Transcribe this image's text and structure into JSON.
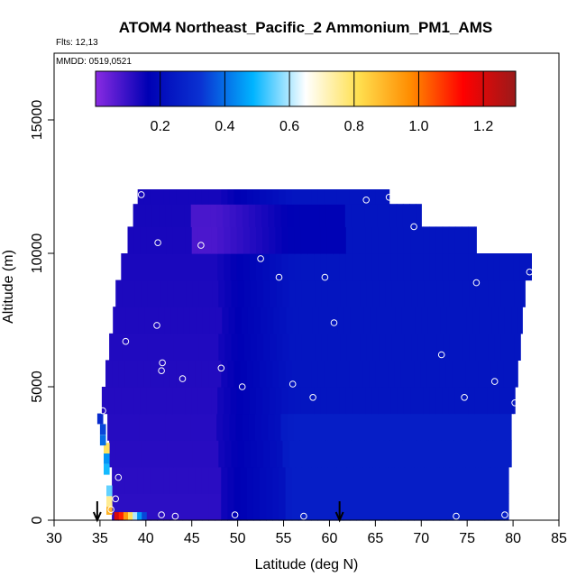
{
  "chart_data": {
    "type": "heatmap",
    "title": "ATOM4 Northeast_Pacific_2 Ammonium_PM1_AMS",
    "flights_label": "Flts: 12,13",
    "dates_label": "MMDD: 0519,0521",
    "xlabel": "Latitude (deg N)",
    "ylabel": "Altitude (m)",
    "xlim": [
      30,
      85
    ],
    "ylim": [
      0,
      17500
    ],
    "x_ticks": [
      30,
      35,
      40,
      45,
      50,
      55,
      60,
      65,
      70,
      75,
      80,
      85
    ],
    "y_ticks": [
      0,
      5000,
      10000,
      15000
    ],
    "colorbar": {
      "min": 0.0,
      "max": 1.3,
      "ticks": [
        0.2,
        0.4,
        0.6,
        0.8,
        1.0,
        1.2
      ],
      "tick_labels": [
        "0.2",
        "0.4",
        "0.6",
        "0.8",
        "1.0",
        "1.2"
      ],
      "colors": [
        "#8a2be2",
        "#0000b4",
        "#0a32d2",
        "#00b4ff",
        "#ffffff",
        "#ffe050",
        "#ff8c00",
        "#ff0000",
        "#9a1a1a"
      ]
    },
    "profile_bins": [
      {
        "z": 500,
        "lat_min": 36.3,
        "lat_max": 79.5
      },
      {
        "z": 1500,
        "lat_min": 36.3,
        "lat_max": 79.5
      },
      {
        "z": 2500,
        "lat_min": 36.0,
        "lat_max": 79.8
      },
      {
        "z": 3500,
        "lat_min": 35.8,
        "lat_max": 79.8
      },
      {
        "z": 4500,
        "lat_min": 35.2,
        "lat_max": 80.2
      },
      {
        "z": 5500,
        "lat_min": 35.6,
        "lat_max": 80.5
      },
      {
        "z": 6500,
        "lat_min": 36.0,
        "lat_max": 80.8
      },
      {
        "z": 7500,
        "lat_min": 36.4,
        "lat_max": 81.0
      },
      {
        "z": 8500,
        "lat_min": 36.7,
        "lat_max": 81.3
      },
      {
        "z": 9500,
        "lat_min": 37.3,
        "lat_max": 82.0
      },
      {
        "z": 10500,
        "lat_min": 38.0,
        "lat_max": 76.0
      },
      {
        "z": 11500,
        "lat_min": 38.6,
        "lat_max": 70.0
      },
      {
        "z": 12200,
        "lat_min": 39.1,
        "lat_max": 66.5
      }
    ],
    "low_level_hotspot": [
      {
        "lat": 36.8,
        "value": 1.2
      },
      {
        "lat": 37.3,
        "value": 1.1
      },
      {
        "lat": 37.8,
        "value": 0.95
      },
      {
        "lat": 38.3,
        "value": 0.8
      },
      {
        "lat": 38.8,
        "value": 0.6
      },
      {
        "lat": 39.3,
        "value": 0.45
      },
      {
        "lat": 39.8,
        "value": 0.35
      }
    ],
    "sample_points": [
      {
        "lat": 39.5,
        "alt": 12200
      },
      {
        "lat": 64.0,
        "alt": 12000
      },
      {
        "lat": 66.5,
        "alt": 12100
      },
      {
        "lat": 69.2,
        "alt": 11000
      },
      {
        "lat": 41.3,
        "alt": 10400
      },
      {
        "lat": 46.0,
        "alt": 10300
      },
      {
        "lat": 52.5,
        "alt": 9800
      },
      {
        "lat": 54.5,
        "alt": 9100
      },
      {
        "lat": 59.5,
        "alt": 9100
      },
      {
        "lat": 76.0,
        "alt": 8900
      },
      {
        "lat": 81.8,
        "alt": 9300
      },
      {
        "lat": 41.2,
        "alt": 7300
      },
      {
        "lat": 60.5,
        "alt": 7400
      },
      {
        "lat": 37.8,
        "alt": 6700
      },
      {
        "lat": 72.2,
        "alt": 6200
      },
      {
        "lat": 41.8,
        "alt": 5900
      },
      {
        "lat": 41.7,
        "alt": 5600
      },
      {
        "lat": 48.2,
        "alt": 5700
      },
      {
        "lat": 44.0,
        "alt": 5300
      },
      {
        "lat": 50.5,
        "alt": 5000
      },
      {
        "lat": 56.0,
        "alt": 5100
      },
      {
        "lat": 58.2,
        "alt": 4600
      },
      {
        "lat": 74.7,
        "alt": 4600
      },
      {
        "lat": 78.0,
        "alt": 5200
      },
      {
        "lat": 80.2,
        "alt": 4400
      },
      {
        "lat": 35.3,
        "alt": 4100
      },
      {
        "lat": 37.0,
        "alt": 1600
      },
      {
        "lat": 36.7,
        "alt": 800
      },
      {
        "lat": 36.2,
        "alt": 400
      },
      {
        "lat": 41.7,
        "alt": 200
      },
      {
        "lat": 43.2,
        "alt": 150
      },
      {
        "lat": 49.7,
        "alt": 200
      },
      {
        "lat": 57.2,
        "alt": 150
      },
      {
        "lat": 73.8,
        "alt": 150
      },
      {
        "lat": 79.1,
        "alt": 200
      }
    ],
    "arrows": [
      {
        "lat": 34.7
      },
      {
        "lat": 61.1
      }
    ]
  }
}
